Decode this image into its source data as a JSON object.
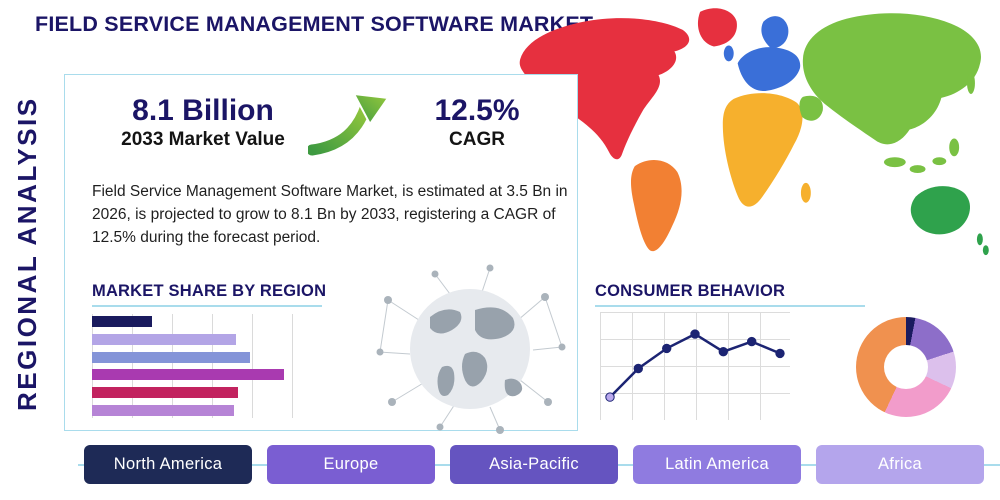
{
  "header": {
    "title": "FIELD SERVICE MANAGEMENT SOFTWARE MARKET",
    "side_label": "REGIONAL ANALYSIS"
  },
  "stats": {
    "market_value": "8.1 Billion",
    "market_value_label": "2033 Market Value",
    "cagr_value": "12.5%",
    "cagr_label": "CAGR",
    "arrow_icon": "growth-arrow",
    "arrow_colors": {
      "light": "#97c93d",
      "dark": "#3e9a41"
    }
  },
  "description": "Field Service Management Software Market, is estimated at 3.5 Bn in 2026, is projected to grow to 8.1 Bn by 2033, registering a CAGR of 12.5% during the forecast period.",
  "sections": {
    "market_share_title": "MARKET SHARE BY REGION",
    "consumer_behavior_title": "CONSUMER BEHAVIOR"
  },
  "regions": [
    {
      "label": "North America",
      "color": "#1e2a56"
    },
    {
      "label": "Europe",
      "color": "#7a5ed2"
    },
    {
      "label": "Asia-Pacific",
      "color": "#6554c0"
    },
    {
      "label": "Latin America",
      "color": "#8f7be0"
    },
    {
      "label": "Africa",
      "color": "#b4a5ec"
    }
  ],
  "map": {
    "colors": {
      "north_america": "#e6303f",
      "greenland": "#e6303f",
      "south_america": "#f28033",
      "europe": "#3a6fd8",
      "africa": "#f6b02d",
      "asia": "#7ac143",
      "australia": "#2fa24c"
    }
  },
  "chart_data": [
    {
      "type": "bar",
      "title": "MARKET SHARE BY REGION",
      "orientation": "horizontal",
      "categories": [
        "",
        "",
        "",
        "",
        "",
        ""
      ],
      "values": [
        25,
        60,
        66,
        80,
        61,
        59
      ],
      "xlim": [
        0,
        100
      ],
      "grid": true,
      "colors": [
        "#1a1b5e",
        "#b3a5e6",
        "#8494d8",
        "#a93ab0",
        "#c2235f",
        "#b684d6"
      ]
    },
    {
      "type": "line",
      "title": "CONSUMER BEHAVIOR",
      "x": [
        1,
        2,
        3,
        4,
        5,
        6,
        7
      ],
      "values": [
        13,
        47,
        71,
        88,
        67,
        79,
        65
      ],
      "ylim": [
        0,
        100
      ],
      "grid": true,
      "color": "#1c2473",
      "first_point_color": "#b9a8ed"
    },
    {
      "type": "pie",
      "donut": true,
      "segments": [
        {
          "label": "",
          "value": 3,
          "color": "#1a1b5e"
        },
        {
          "label": "",
          "value": 17,
          "color": "#8d6ec9"
        },
        {
          "label": "",
          "value": 12,
          "color": "#dcc0ec"
        },
        {
          "label": "",
          "value": 25,
          "color": "#f29ccb"
        },
        {
          "label": "",
          "value": 43,
          "color": "#f0914f"
        }
      ]
    }
  ]
}
